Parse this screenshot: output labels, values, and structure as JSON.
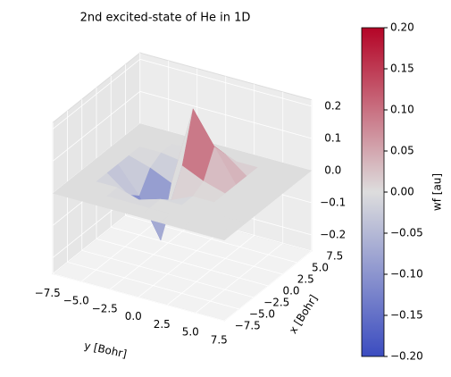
{
  "chart_data": {
    "type": "surface3d",
    "title": "2nd excited-state of He in 1D",
    "xlabel": "y [Bohr]",
    "ylabel": "x [Bohr]",
    "colorbar_label": "wf [au]",
    "x": [
      -7.5,
      -5.625,
      -3.75,
      -1.875,
      0,
      1.875,
      3.75,
      5.625,
      7.5
    ],
    "y": [
      -7.5,
      -5.625,
      -3.75,
      -1.875,
      0,
      1.875,
      3.75,
      5.625,
      7.5
    ],
    "z": [
      [
        0,
        0,
        0,
        0,
        0,
        0,
        0,
        0,
        0
      ],
      [
        0,
        0,
        0,
        0,
        0,
        0,
        0,
        0,
        0
      ],
      [
        0,
        0,
        0,
        -0.02,
        0,
        0,
        0,
        0,
        0
      ],
      [
        0,
        0,
        -0.05,
        -0.1,
        -0.03,
        0,
        0,
        0,
        0
      ],
      [
        0,
        0,
        -0.08,
        -0.2,
        0.05,
        0.02,
        0,
        0,
        0
      ],
      [
        0,
        0,
        -0.02,
        -0.05,
        0.2,
        0.1,
        0,
        0,
        0
      ],
      [
        0,
        0,
        0,
        -0.01,
        0.08,
        0.05,
        0,
        0,
        0
      ],
      [
        0,
        0,
        0,
        0,
        0,
        0,
        0,
        0,
        0
      ],
      [
        0,
        0,
        0,
        0,
        0,
        0,
        0,
        0,
        0
      ]
    ],
    "xlim": [
      -7.5,
      7.5
    ],
    "ylim": [
      -7.5,
      7.5
    ],
    "zlim": [
      -0.25,
      0.22
    ],
    "xticks": [
      {
        "value": -7.5,
        "label": "−7.5"
      },
      {
        "value": -5,
        "label": "−5.0"
      },
      {
        "value": -2.5,
        "label": "−2.5"
      },
      {
        "value": 0,
        "label": "0.0"
      },
      2.5,
      {
        "value": 5,
        "label": "5.0"
      },
      7.5
    ],
    "yticks": [
      {
        "value": -7.5,
        "label": "−7.5"
      },
      {
        "value": -5,
        "label": "−5.0"
      },
      {
        "value": -2.5,
        "label": "−2.5"
      },
      {
        "value": 0,
        "label": "0.0"
      },
      2.5,
      {
        "value": 5,
        "label": "5.0"
      },
      7.5
    ],
    "zticks": [
      {
        "value": -0.2,
        "label": "−0.2"
      },
      {
        "value": -0.1,
        "label": "−0.1"
      },
      {
        "value": 0,
        "label": "0.0"
      },
      0.1,
      0.2
    ],
    "clim": [
      -0.2,
      0.2
    ],
    "cticks": [
      {
        "value": -0.2,
        "label": "−0.20"
      },
      {
        "value": -0.15,
        "label": "−0.15"
      },
      {
        "value": -0.1,
        "label": "−0.10"
      },
      {
        "value": -0.05,
        "label": "−0.05"
      },
      {
        "value": 0,
        "label": "0.00"
      },
      {
        "value": 0.05,
        "label": "0.05"
      },
      {
        "value": 0.1,
        "label": "0.10"
      },
      {
        "value": 0.15,
        "label": "0.15"
      },
      {
        "value": 0.2,
        "label": "0.20"
      }
    ],
    "colormap": [
      "#3b4cc0",
      "#dddddd",
      "#b40426"
    ]
  }
}
